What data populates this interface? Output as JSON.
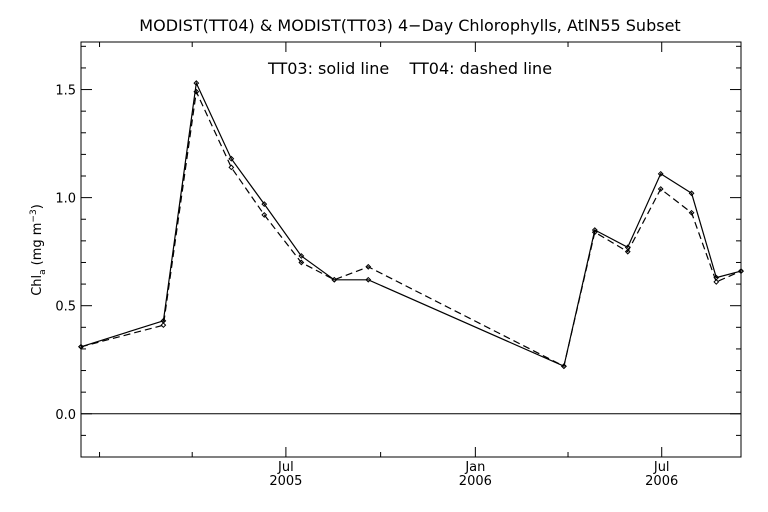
{
  "chart_data": {
    "type": "line",
    "title": "MODIST(TT04) & MODIST(TT03) 4−Day Chlorophylls, AtlN55 Subset",
    "annotation": "TT03: solid line    TT04: dashed line",
    "ylabel_main": "Chl",
    "ylabel_sub": "a",
    "ylabel_unit": "(mg m",
    "ylabel_sup": "−3",
    "ylabel_close": ")",
    "xlabel": "",
    "ylim": [
      -0.2,
      1.72
    ],
    "yticks": [
      0.0,
      0.5,
      1.0,
      1.5
    ],
    "ytick_labels": [
      "0.0",
      "0.5",
      "1.0",
      "1.5"
    ],
    "xlim": [
      "2004-12-14",
      "2006-09-16"
    ],
    "xticks": [
      {
        "date": "2005-07-01",
        "line1": "Jul",
        "line2": "2005"
      },
      {
        "date": "2006-01-01",
        "line1": "Jan",
        "line2": "2006"
      },
      {
        "date": "2006-07-01",
        "line1": "Jul",
        "line2": "2006"
      }
    ],
    "zero_line": 0,
    "series": [
      {
        "name": "TT03",
        "style": "solid",
        "color": "#000000",
        "x": [
          "2004-12-14",
          "2005-03-04",
          "2005-04-05",
          "2005-05-09",
          "2005-06-10",
          "2005-07-16",
          "2005-08-17",
          "2005-09-19",
          "2006-03-28",
          "2006-04-27",
          "2006-05-29",
          "2006-06-30",
          "2006-07-30",
          "2006-08-23",
          "2006-09-16"
        ],
        "y": [
          0.31,
          0.43,
          1.53,
          1.18,
          0.97,
          0.73,
          0.62,
          0.62,
          0.22,
          0.85,
          0.77,
          1.11,
          1.02,
          0.63,
          0.66
        ]
      },
      {
        "name": "TT04",
        "style": "dashed",
        "color": "#000000",
        "x": [
          "2004-12-14",
          "2005-03-04",
          "2005-04-05",
          "2005-05-09",
          "2005-06-10",
          "2005-07-16",
          "2005-08-17",
          "2005-09-19",
          "2006-03-28",
          "2006-04-27",
          "2006-05-29",
          "2006-06-30",
          "2006-07-30",
          "2006-08-23",
          "2006-09-16"
        ],
        "y": [
          0.31,
          0.41,
          1.49,
          1.14,
          0.92,
          0.7,
          0.62,
          0.68,
          0.22,
          0.84,
          0.75,
          1.04,
          0.93,
          0.61,
          0.66
        ]
      }
    ]
  }
}
